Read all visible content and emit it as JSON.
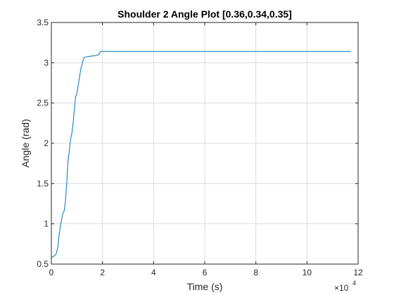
{
  "chart_data": {
    "type": "line",
    "title": "Shoulder 2 Angle Plot [0.36,0.34,0.35]",
    "xlabel": "Time (s)",
    "ylabel": "Angle (rad)",
    "xlim": [
      0,
      12
    ],
    "ylim": [
      0.5,
      3.5
    ],
    "x_multiplier_base": "×10",
    "x_multiplier_exponent": "4",
    "xticks": [
      0,
      2,
      4,
      6,
      8,
      10,
      12
    ],
    "xtick_labels": [
      "0",
      "2",
      "4",
      "6",
      "8",
      "10",
      "12"
    ],
    "yticks": [
      0.5,
      1,
      1.5,
      2,
      2.5,
      3,
      3.5
    ],
    "ytick_labels": [
      "0.5",
      "1",
      "1.5",
      "2",
      "2.5",
      "3",
      "3.5"
    ],
    "grid": true,
    "line_color": "#0072bd",
    "series": [
      {
        "x": [
          0,
          0.1,
          0.18,
          0.25,
          0.3,
          0.35,
          0.4,
          0.45,
          0.5,
          0.55,
          0.6,
          0.65,
          0.7,
          0.75,
          0.8,
          0.85,
          0.9,
          0.95,
          1.0,
          1.05,
          1.1,
          1.15,
          1.2,
          1.25,
          1.3,
          1.35,
          1.4,
          1.45,
          1.5,
          1.55,
          1.6,
          1.65,
          1.7,
          1.75,
          1.8,
          1.85,
          1.9,
          1.95,
          2.0,
          3.0,
          4.0,
          5.0,
          6.0,
          7.0,
          8.0,
          9.0,
          10.0,
          11.0,
          11.72
        ],
        "y": [
          0.58,
          0.6,
          0.62,
          0.7,
          0.85,
          0.97,
          1.05,
          1.13,
          1.16,
          1.28,
          1.5,
          1.78,
          1.9,
          2.05,
          2.12,
          2.25,
          2.42,
          2.58,
          2.62,
          2.72,
          2.82,
          2.92,
          2.98,
          3.04,
          3.07,
          3.07,
          3.075,
          3.075,
          3.08,
          3.08,
          3.085,
          3.085,
          3.09,
          3.09,
          3.095,
          3.1,
          3.13,
          3.14,
          3.14,
          3.14,
          3.14,
          3.14,
          3.14,
          3.14,
          3.14,
          3.14,
          3.14,
          3.14,
          3.14
        ]
      }
    ]
  }
}
